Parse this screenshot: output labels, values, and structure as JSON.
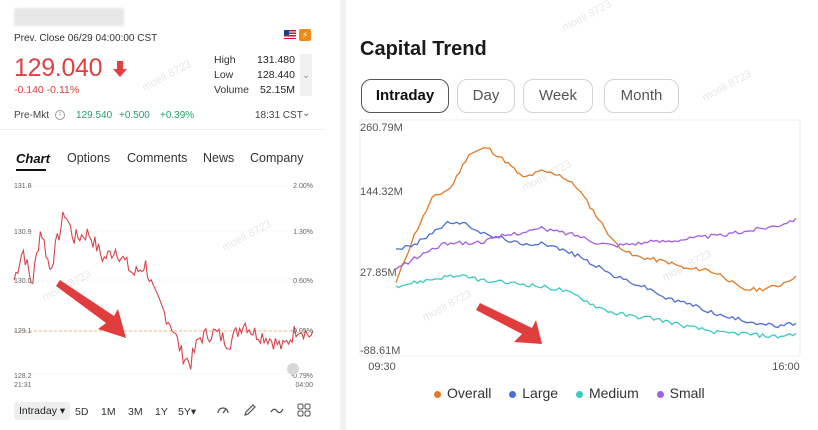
{
  "quote": {
    "prev_close": "Prev. Close 06/29 04:00:00 CST",
    "price": "129.040",
    "change": "-0.140 -0.11%",
    "stats": [
      {
        "label": "High",
        "value": "131.480"
      },
      {
        "label": "Low",
        "value": "128.440"
      },
      {
        "label": "Volume",
        "value": "52.15M"
      }
    ],
    "premarket": {
      "label": "Pre-Mkt",
      "price": "129.540",
      "change": "+0.500",
      "pct": "+0.39%",
      "time": "18:31 CST"
    }
  },
  "tabs": [
    "Chart",
    "Options",
    "Comments",
    "News",
    "Company"
  ],
  "stock_chart": {
    "y_left": [
      "131.8",
      "130.9",
      "130.0",
      "129.1",
      "128.2"
    ],
    "y_right": [
      "2.00%",
      "1.30%",
      "0.60%",
      "-0.05%",
      "-0.79%"
    ],
    "x_left": "21:31",
    "x_right": "04:00",
    "prev_close_level": 129.1,
    "ylim": [
      128.2,
      131.8
    ]
  },
  "ranges": [
    "Intraday",
    "5D",
    "1M",
    "3M",
    "1Y",
    "5Y"
  ],
  "tools": [
    "indicator-icon",
    "draw-icon",
    "chart-type-icon",
    "grid-icon"
  ],
  "capital_trend": {
    "title": "Capital Trend",
    "pills": [
      "Intraday",
      "Day",
      "Week",
      "Month"
    ],
    "selected_pill": "Intraday"
  },
  "chart_data": {
    "type": "line",
    "title": "Capital Trend",
    "xlabel": "",
    "ylabel": "",
    "x_ticks": [
      "09:30",
      "16:00"
    ],
    "y_ticks": [
      "260.79M",
      "144.32M",
      "27.85M",
      "-88.61M"
    ],
    "ylim": [
      -88.61,
      260.79
    ],
    "legend_position": "bottom",
    "series": [
      {
        "name": "Overall",
        "color": "#e07b28",
        "values": [
          20,
          90,
          145,
          160,
          210,
          220,
          200,
          175,
          185,
          180,
          160,
          120,
          80,
          60,
          55,
          50,
          40,
          40,
          30,
          10,
          10,
          15,
          30
        ]
      },
      {
        "name": "Large",
        "color": "#4a6fd0",
        "values": [
          70,
          75,
          95,
          110,
          105,
          90,
          85,
          75,
          80,
          70,
          60,
          45,
          30,
          20,
          10,
          -5,
          -10,
          -20,
          -30,
          -35,
          -40,
          -45,
          -40
        ]
      },
      {
        "name": "Medium",
        "color": "#3cc9c0",
        "values": [
          15,
          20,
          25,
          30,
          28,
          22,
          20,
          18,
          14,
          10,
          0,
          -15,
          -25,
          -30,
          -32,
          -38,
          -45,
          -50,
          -55,
          -55,
          -58,
          -60,
          -55
        ]
      },
      {
        "name": "Small",
        "color": "#a65ee0",
        "values": [
          40,
          55,
          70,
          80,
          78,
          82,
          90,
          95,
          100,
          95,
          90,
          80,
          75,
          78,
          80,
          82,
          85,
          88,
          90,
          95,
          100,
          105,
          115
        ]
      }
    ]
  },
  "watermark": "moeli 8723"
}
